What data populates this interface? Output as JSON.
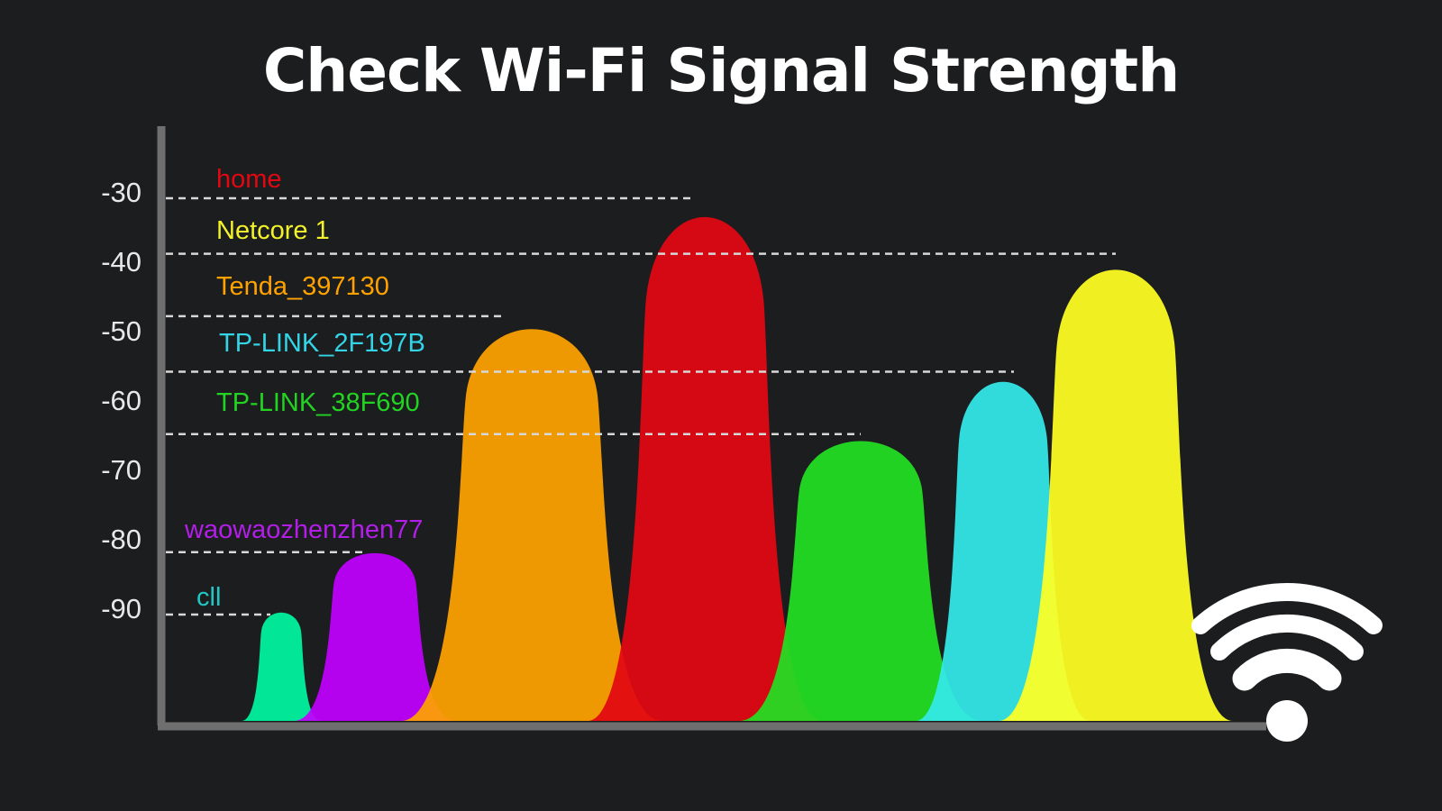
{
  "title": "Check Wi-Fi Signal Strength",
  "chart_data": {
    "type": "area",
    "title": "Check Wi-Fi Signal Strength",
    "xlabel": "",
    "ylabel": "",
    "yticks": [
      -30,
      -40,
      -50,
      -60,
      -70,
      -80,
      -90
    ],
    "ylim": [
      -105,
      -25
    ],
    "grid": false,
    "legend": "inline labels at top-left",
    "series": [
      {
        "name": "cll",
        "signal": -90,
        "color": "#00f5a0",
        "label_color": "#1fc7c7"
      },
      {
        "name": "waowaozhenzhen77",
        "signal": -81,
        "color": "#c000ff",
        "label_color": "#b21ee8"
      },
      {
        "name": "Tenda_397130",
        "signal": -47,
        "color": "#ffa200",
        "label_color": "#ffa200"
      },
      {
        "name": "home",
        "signal": -30,
        "color": "#e20812",
        "label_color": "#e20812"
      },
      {
        "name": "TP-LINK_38F690",
        "signal": -64,
        "color": "#22e022",
        "label_color": "#22d322"
      },
      {
        "name": "TP-LINK_2F197B",
        "signal": -55,
        "color": "#33eaea",
        "label_color": "#33d4e6"
      },
      {
        "name": "Netcore 1",
        "signal": -38,
        "color": "#ffff22",
        "label_color": "#f2f22a"
      }
    ]
  },
  "wifi_icon": "wifi-icon"
}
